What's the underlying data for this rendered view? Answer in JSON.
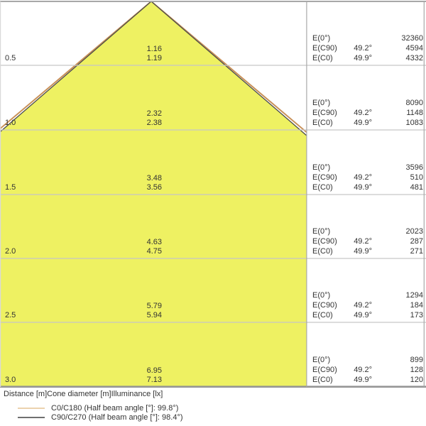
{
  "colors": {
    "cone_fill": "#eef162",
    "c0_curve": "#c89058",
    "c90_curve": "#4d4d4d",
    "gridline": "#c6c6c6",
    "border": "#a8a8a8",
    "bottom_border": "#969696",
    "legend_c0_swatch": "#ecd2ae",
    "legend_c90_swatch": "#707070"
  },
  "table_labels": {
    "e0": "E(0°)",
    "ec90": "E(C90)",
    "ec0": "E(C0)"
  },
  "rows": [
    {
      "distance": "0.5",
      "diameter_c90": "1.16",
      "diameter_c0": "1.19",
      "e0": "32360",
      "ec90_angle": "49.2°",
      "ec90": "4594",
      "ec0_angle": "49.9°",
      "ec0": "4332"
    },
    {
      "distance": "1.0",
      "diameter_c90": "2.32",
      "diameter_c0": "2.38",
      "e0": "8090",
      "ec90_angle": "49.2°",
      "ec90": "1148",
      "ec0_angle": "49.9°",
      "ec0": "1083"
    },
    {
      "distance": "1.5",
      "diameter_c90": "3.48",
      "diameter_c0": "3.56",
      "e0": "3596",
      "ec90_angle": "49.2°",
      "ec90": "510",
      "ec0_angle": "49.9°",
      "ec0": "481"
    },
    {
      "distance": "2.0",
      "diameter_c90": "4.63",
      "diameter_c0": "4.75",
      "e0": "2023",
      "ec90_angle": "49.2°",
      "ec90": "287",
      "ec0_angle": "49.9°",
      "ec0": "271"
    },
    {
      "distance": "2.5",
      "diameter_c90": "5.79",
      "diameter_c0": "5.94",
      "e0": "1294",
      "ec90_angle": "49.2°",
      "ec90": "184",
      "ec0_angle": "49.9°",
      "ec0": "173"
    },
    {
      "distance": "3.0",
      "diameter_c90": "6.95",
      "diameter_c0": "7.13",
      "e0": "899",
      "ec90_angle": "49.2°",
      "ec90": "128",
      "ec0_angle": "49.9°",
      "ec0": "120"
    }
  ],
  "footer": {
    "axis_note": "Distance [m]Cone diameter [m]Illuminance [lx]",
    "legend": [
      {
        "label": "C0/C180 (Half beam angle [°]: 99.8°)",
        "color": "#ecd2ae"
      },
      {
        "label": "C90/C270 (Half beam angle [°]: 98.4°)",
        "color": "#707070"
      }
    ]
  },
  "chart_data": {
    "type": "table",
    "title": "Light cone diagram: distance vs cone diameter and illuminance",
    "distances_m": [
      0.5,
      1.0,
      1.5,
      2.0,
      2.5,
      3.0
    ],
    "cone_diameter_c90_c270_m": [
      1.16,
      2.32,
      3.48,
      4.63,
      5.79,
      6.95
    ],
    "cone_diameter_c0_c180_m": [
      1.19,
      2.38,
      3.56,
      4.75,
      5.94,
      7.13
    ],
    "illuminance_e0_lx": [
      32360,
      8090,
      3596,
      2023,
      1294,
      899
    ],
    "illuminance_ec90_lx": [
      4594,
      1148,
      510,
      287,
      184,
      128
    ],
    "illuminance_ec0_lx": [
      4332,
      1083,
      481,
      271,
      173,
      120
    ],
    "ec90_half_angle_deg": 49.2,
    "ec0_half_angle_deg": 49.9,
    "half_beam_angle_c0_c180_deg": 99.8,
    "half_beam_angle_c90_c270_deg": 98.4,
    "units": {
      "distance": "m",
      "cone_diameter": "m",
      "illuminance": "lx"
    }
  }
}
